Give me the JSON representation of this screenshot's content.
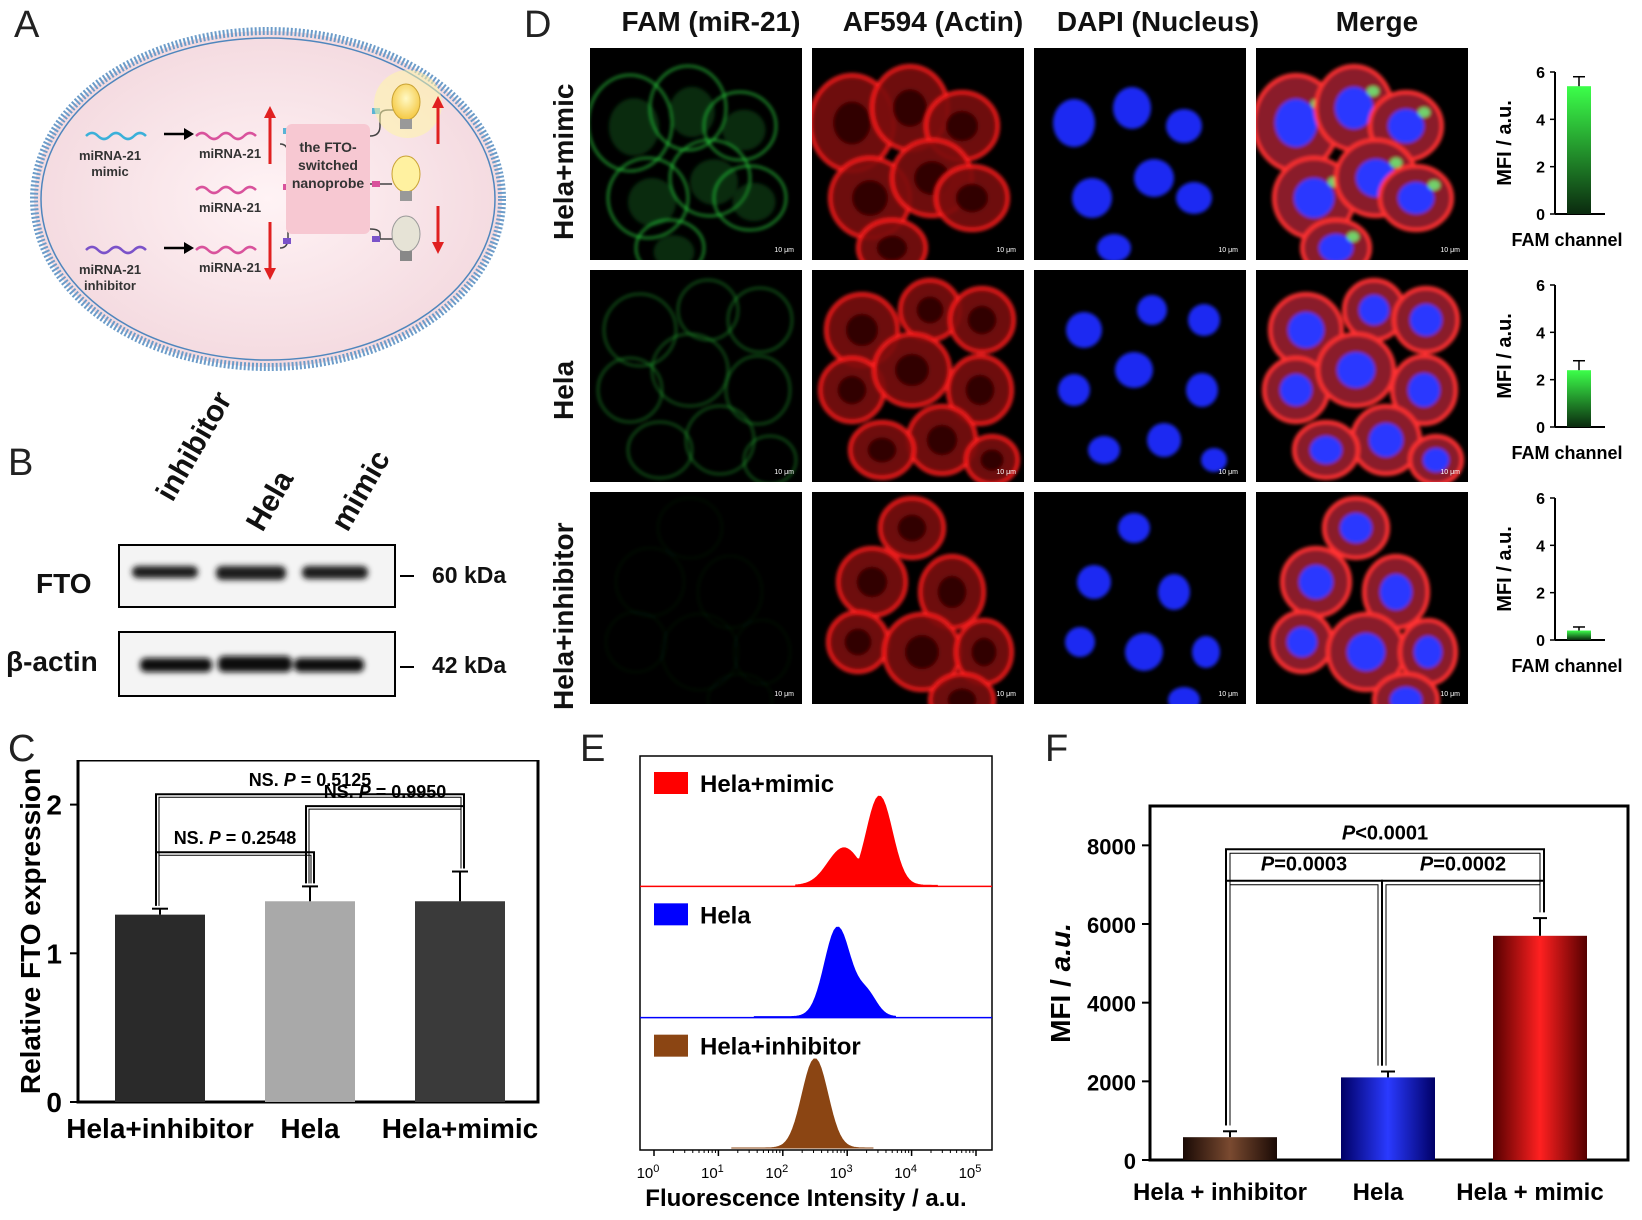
{
  "panel_labels": {
    "A": "A",
    "B": "B",
    "C": "C",
    "D": "D",
    "E": "E",
    "F": "F"
  },
  "panelA": {
    "mimic_label_1": "miRNA-21",
    "mimic_label_2": "mimic",
    "inhibitor_label_1": "miRNA-21",
    "inhibitor_label_2": "inhibitor",
    "mirna_top": "miRNA-21",
    "mirna_mid": "miRNA-21",
    "mirna_bot": "miRNA-21",
    "probe_1": "the FTO-",
    "probe_2": "switched",
    "probe_3": "nanoprobe"
  },
  "panelB": {
    "lanes": [
      "inhibitor",
      "Hela",
      "mimic"
    ],
    "row1": "FTO",
    "row2": "β-actin",
    "mw1": "60 kDa",
    "mw2": "42 kDa"
  },
  "panelD": {
    "columns": [
      "FAM (miR-21)",
      "AF594 (Actin)",
      "DAPI (Nucleus)",
      "Merge"
    ],
    "rows": [
      "Hela+mimic",
      "Hela",
      "Hela+inhibitor"
    ],
    "scalebar": "10 μm",
    "mini_ylabel": "MFI / a.u.",
    "mini_xlabel": "FAM channel",
    "mini_ticks": [
      "0",
      "2",
      "4",
      "6"
    ]
  },
  "chart_data": [
    {
      "id": "C",
      "type": "bar",
      "categories": [
        "Hela+inhibitor",
        "Hela",
        "Hela+mimic"
      ],
      "values": [
        1.26,
        1.35,
        1.35
      ],
      "errors": [
        0.04,
        0.1,
        0.2
      ],
      "colors": [
        "#2a2a2a",
        "#a9a9a9",
        "#3a3a3a"
      ],
      "ylabel": "Relative FTO expression",
      "ylim": [
        0,
        2.3
      ],
      "yticks": [
        "0",
        "1",
        "2"
      ],
      "annotations": [
        {
          "text_prefix": "NS. ",
          "text_p": "P",
          "text_value": " = 0.2548",
          "from": 0,
          "to": 1
        },
        {
          "text_prefix": "NS. ",
          "text_p": "P",
          "text_value": " = 0.9950",
          "from": 1,
          "to": 2
        },
        {
          "text_prefix": "NS. ",
          "text_p": "P",
          "text_value": " = 0.5125",
          "from": 0,
          "to": 2
        }
      ]
    },
    {
      "id": "E",
      "type": "area",
      "series": [
        {
          "name": "Hela+mimic",
          "color": "#ff0000",
          "peak_log": 3.5
        },
        {
          "name": "Hela",
          "color": "#0000ff",
          "peak_log": 2.85
        },
        {
          "name": "Hela+inhibitor",
          "color": "#8b4513",
          "peak_log": 2.5
        }
      ],
      "xlabel": "Fluorescence Intensity / a.u.",
      "xticks": [
        {
          "base": "10",
          "exp": "0"
        },
        {
          "base": "10",
          "exp": "1"
        },
        {
          "base": "10",
          "exp": "2"
        },
        {
          "base": "10",
          "exp": "3"
        },
        {
          "base": "10",
          "exp": "4"
        },
        {
          "base": "10",
          "exp": "5"
        }
      ],
      "xlim": [
        0,
        5
      ]
    },
    {
      "id": "F",
      "type": "bar",
      "categories": [
        "Hela + inhibitor",
        "Hela",
        "Hela + mimic"
      ],
      "values": [
        580,
        2100,
        5700
      ],
      "errors": [
        150,
        150,
        450
      ],
      "colors": [
        "#4a2a1a",
        "#0000cc",
        "#cc0000"
      ],
      "ylabel_1": "MFI / ",
      "ylabel_2": "a.u.",
      "ylim": [
        0,
        9000
      ],
      "yticks": [
        "0",
        "2000",
        "4000",
        "6000",
        "8000"
      ],
      "annotations": [
        {
          "text_p": "P",
          "text_value": "=0.0003",
          "from": 0,
          "to": 1
        },
        {
          "text_p": "P",
          "text_value": "=0.0002",
          "from": 1,
          "to": 2
        },
        {
          "text_p": "P",
          "text_value": "<0.0001",
          "from": 0,
          "to": 2
        }
      ]
    },
    {
      "id": "D-mini",
      "type": "bar",
      "categories": [
        "Hela+mimic",
        "Hela",
        "Hela+inhibitor"
      ],
      "values": [
        5.4,
        2.4,
        0.4
      ],
      "errors": [
        0.4,
        0.4,
        0.15
      ],
      "ylim": [
        0,
        6
      ]
    }
  ]
}
